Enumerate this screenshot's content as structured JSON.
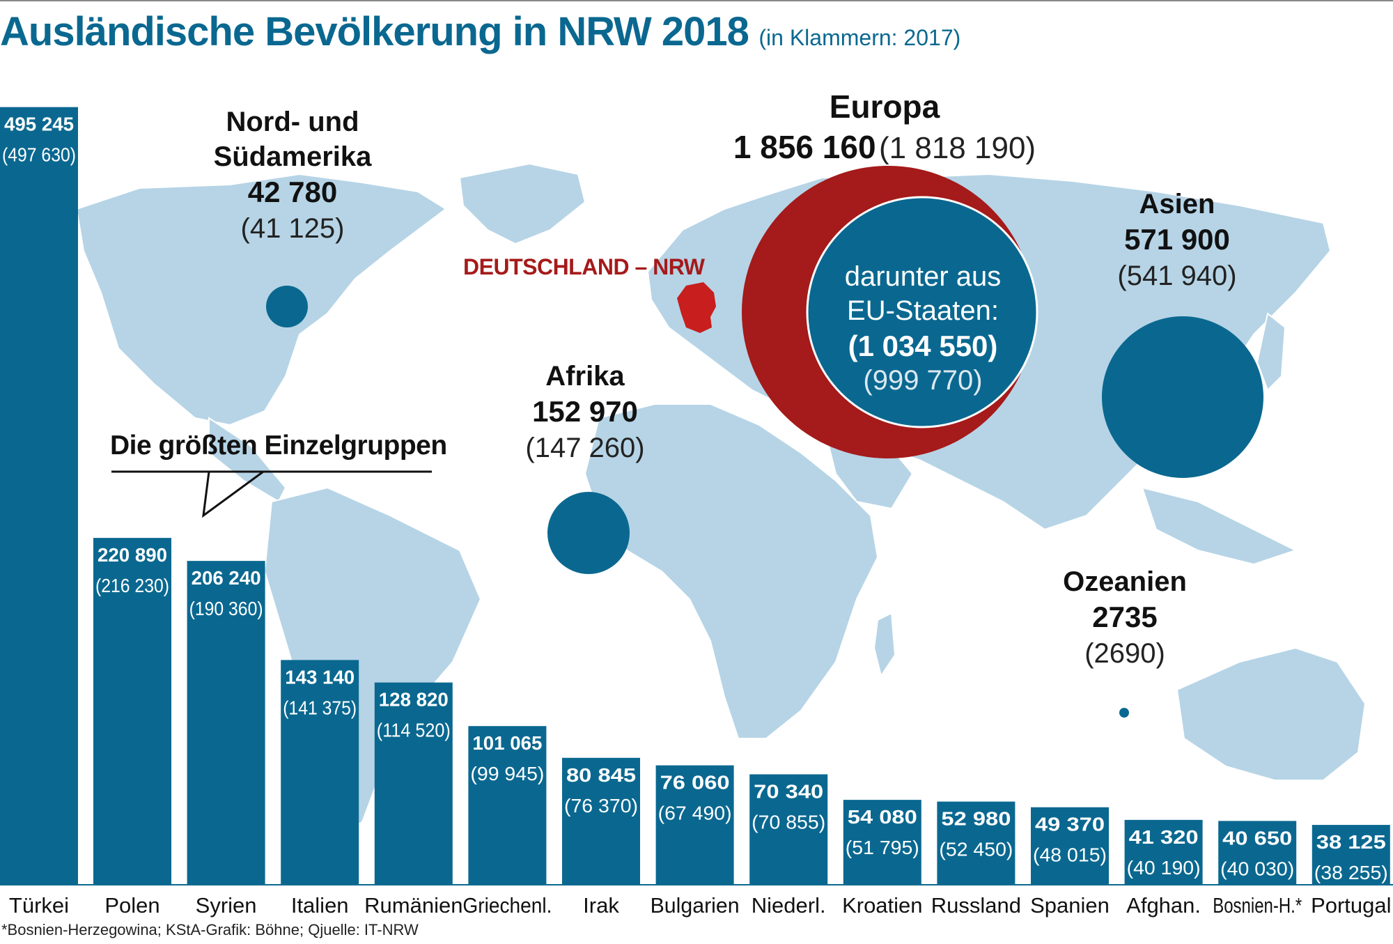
{
  "title": "Ausländische Bevölkerung in NRW 2018",
  "subtitle": "(in Klammern: 2017)",
  "colors": {
    "bar": "#0a6890",
    "map": "#b6d4e6",
    "europe": "#a51a1a",
    "germany": "#c81e1e",
    "circle": "#0a6890"
  },
  "germany_label": "DEUTSCHLAND – NRW",
  "callout_label": "Die größten Einzelgruppen",
  "footnote": "*Bosnien-Herzegowina; KStA-Grafik: Böhne; Qjuelle: IT-NRW",
  "regions": {
    "america": {
      "name_line1": "Nord- und",
      "name_line2": "Südamerika",
      "value": "42 780",
      "prev": "(41 125)"
    },
    "europe": {
      "name": "Europa",
      "value": "1 856 160",
      "prev": "(1 818 190)"
    },
    "eu": {
      "name_line1": "darunter aus",
      "name_line2": "EU-Staaten:",
      "value": "(1 034 550)",
      "prev": "(999 770)"
    },
    "asia": {
      "name": "Asien",
      "value": "571 900",
      "prev": "(541 940)"
    },
    "africa": {
      "name": "Afrika",
      "value": "152 970",
      "prev": "(147 260)"
    },
    "oceania": {
      "name": "Ozeanien",
      "value": "2735",
      "prev": "(2690)"
    }
  },
  "chart_data": {
    "type": "bar",
    "title": "Ausländische Bevölkerung in NRW 2018",
    "subtitle": "(in Klammern: 2017)",
    "categories": [
      "Türkei",
      "Polen",
      "Syrien",
      "Italien",
      "Rumänien",
      "Griechenl.",
      "Irak",
      "Bulgarien",
      "Niederl.",
      "Kroatien",
      "Russland",
      "Spanien",
      "Afghan.",
      "Bosnien-H.*",
      "Portugal"
    ],
    "series": [
      {
        "name": "2018",
        "values": [
          495245,
          220890,
          206240,
          143140,
          128820,
          101065,
          80845,
          76060,
          70340,
          54080,
          52980,
          49370,
          41320,
          40650,
          38125
        ]
      },
      {
        "name": "2017",
        "values": [
          497630,
          216230,
          190360,
          141375,
          114520,
          99945,
          76370,
          67490,
          70855,
          51795,
          52450,
          48015,
          40190,
          40030,
          38255
        ]
      }
    ],
    "labels_2018": [
      "495 245",
      "220 890",
      "206 240",
      "143 140",
      "128 820",
      "101 065",
      "80 845",
      "76 060",
      "70 340",
      "54 080",
      "52 980",
      "49 370",
      "41 320",
      "40 650",
      "38 125"
    ],
    "labels_2017": [
      "(497 630)",
      "(216 230)",
      "(190 360)",
      "(141 375)",
      "(114 520)",
      "(99 945)",
      "(76 370)",
      "(67 490)",
      "(70 855)",
      "(51 795)",
      "(52 450)",
      "(48 015)",
      "(40 190)",
      "(40 030)",
      "(38 255)"
    ],
    "regions": [
      {
        "name": "Europa",
        "value": 1856160,
        "prev": 1818190
      },
      {
        "name": "darunter aus EU-Staaten",
        "value": 1034550,
        "prev": 999770
      },
      {
        "name": "Asien",
        "value": 571900,
        "prev": 541940
      },
      {
        "name": "Afrika",
        "value": 152970,
        "prev": 147260
      },
      {
        "name": "Nord- und Südamerika",
        "value": 42780,
        "prev": 41125
      },
      {
        "name": "Ozeanien",
        "value": 2735,
        "prev": 2690
      }
    ],
    "ylim": [
      0,
      500000
    ]
  }
}
